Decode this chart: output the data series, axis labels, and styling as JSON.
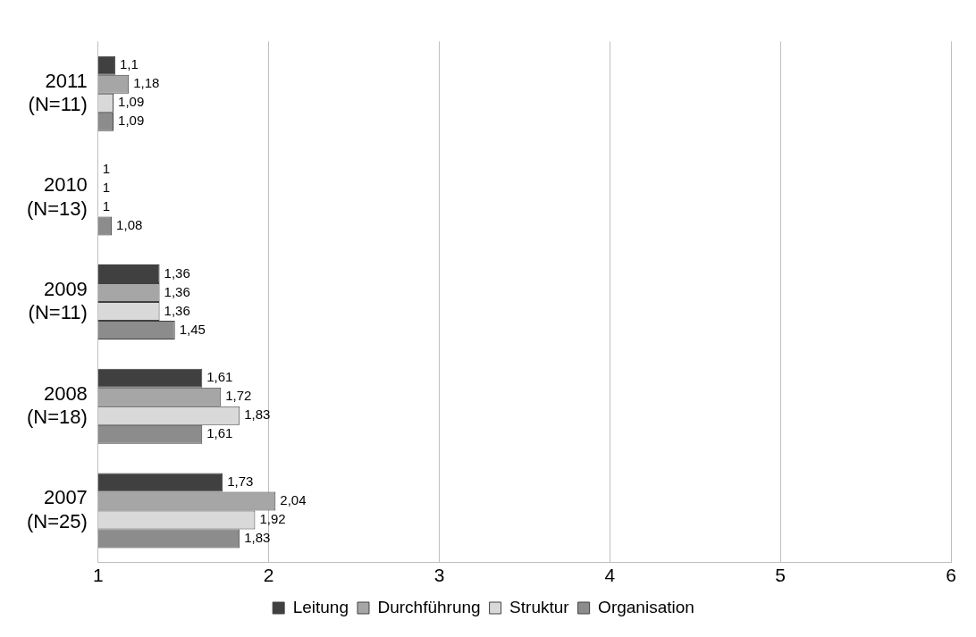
{
  "chart_data": {
    "type": "bar",
    "orientation": "horizontal",
    "categories": [
      "2011 (N=11)",
      "2010 (N=13)",
      "2009 (N=11)",
      "2008 (N=18)",
      "2007 (N=25)"
    ],
    "series": [
      {
        "name": "Leitung",
        "color": "#404040",
        "values": [
          1.1,
          1,
          1.36,
          1.61,
          1.73
        ],
        "value_labels": [
          "1,1",
          "1",
          "1,36",
          "1,61",
          "1,73"
        ]
      },
      {
        "name": "Durchführung",
        "color": "#a6a6a6",
        "values": [
          1.18,
          1,
          1.36,
          1.72,
          2.04
        ],
        "value_labels": [
          "1,18",
          "1",
          "1,36",
          "1,72",
          "2,04"
        ]
      },
      {
        "name": "Struktur",
        "color": "#d9d9d9",
        "values": [
          1.09,
          1,
          1.36,
          1.83,
          1.92
        ],
        "value_labels": [
          "1,09",
          "1",
          "1,36",
          "1,83",
          "1,92"
        ]
      },
      {
        "name": "Organisation",
        "color": "#8c8c8c",
        "values": [
          1.09,
          1.08,
          1.45,
          1.61,
          1.83
        ],
        "value_labels": [
          "1,09",
          "1,08",
          "1,45",
          "1,61",
          "1,83"
        ]
      }
    ],
    "xlim": [
      1,
      6
    ],
    "xticks": [
      1,
      2,
      3,
      4,
      5,
      6
    ],
    "grid": "x",
    "legend": "bottom"
  }
}
